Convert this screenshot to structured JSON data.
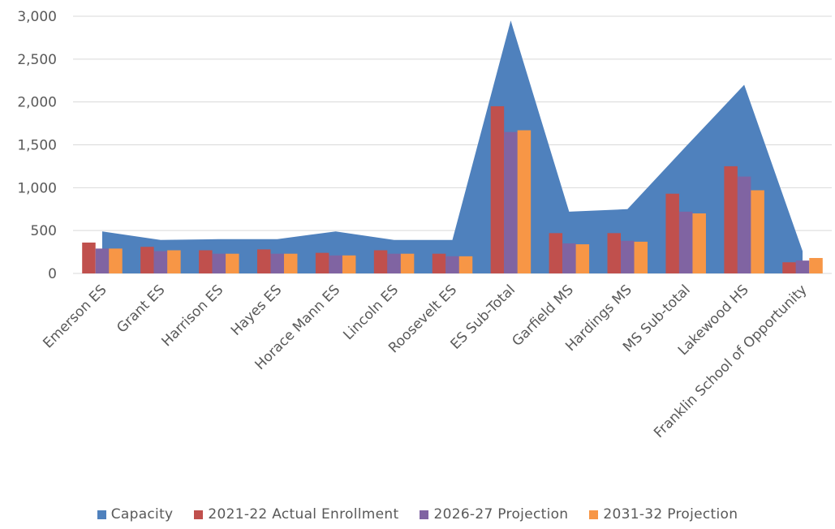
{
  "chart_data": {
    "type": "bar",
    "categories": [
      "Emerson ES",
      "Grant ES",
      "Harrison ES",
      "Hayes ES",
      "Horace Mann ES",
      "Lincoln ES",
      "Roosevelt ES",
      "ES Sub-Total",
      "Garfield MS",
      "Hardings MS",
      "MS Sub-total",
      "Lakewood HS",
      "Franklin School of Opportunity"
    ],
    "yticks": [
      "0",
      "500",
      "1,000",
      "1,500",
      "2,000",
      "2,500",
      "3,000"
    ],
    "ylim": [
      0,
      3000
    ],
    "grid": true,
    "legend_position": "bottom",
    "series": [
      {
        "name": "Capacity",
        "type": "area",
        "color": "#4f81bd",
        "values": [
          490,
          390,
          400,
          400,
          490,
          390,
          390,
          2950,
          720,
          750,
          1480,
          2200,
          260
        ]
      },
      {
        "name": "2021-22 Actual Enrollment",
        "type": "bar",
        "color": "#c0504d",
        "values": [
          360,
          310,
          270,
          280,
          240,
          270,
          230,
          1950,
          470,
          470,
          930,
          1250,
          130
        ]
      },
      {
        "name": "2026-27 Projection",
        "type": "bar",
        "color": "#8064a2",
        "values": [
          290,
          260,
          230,
          230,
          210,
          230,
          200,
          1650,
          350,
          380,
          720,
          1130,
          150
        ]
      },
      {
        "name": "2031-32 Projection",
        "type": "bar",
        "color": "#f79646",
        "values": [
          290,
          270,
          230,
          230,
          210,
          230,
          200,
          1670,
          340,
          370,
          700,
          970,
          180
        ]
      }
    ]
  }
}
